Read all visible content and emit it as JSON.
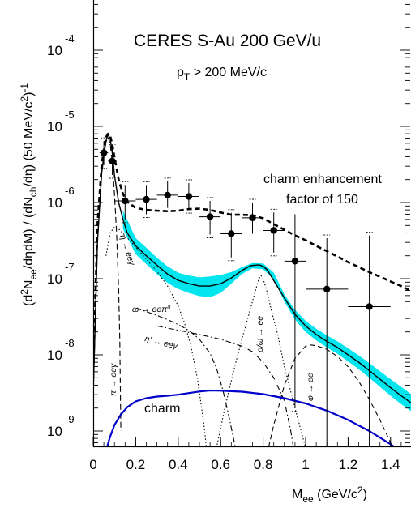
{
  "chart_data": {
    "type": "line",
    "title": "CERES S-Au 200 GeV/u",
    "subtitle": {
      "main": "p",
      "sub": "T",
      "rest": " > 200 MeV/c"
    },
    "ylabel": "(d²N_ee/dηdM) / (dN_ch/dη) (50 MeV/c²)⁻¹",
    "xlabel": "M_ee (GeV/c²)",
    "xlim": [
      0,
      1.5
    ],
    "ylim_log10": [
      -9.45,
      -3.55
    ],
    "x_ticks": [
      {
        "v": 0,
        "label": "0"
      },
      {
        "v": 0.2,
        "label": "0.2"
      },
      {
        "v": 0.4,
        "label": "0.4"
      },
      {
        "v": 0.6,
        "label": "0.6"
      },
      {
        "v": 0.8,
        "label": "0.8"
      },
      {
        "v": 1.0,
        "label": "1"
      },
      {
        "v": 1.2,
        "label": "1.2"
      },
      {
        "v": 1.4,
        "label": "1.4"
      }
    ],
    "y_ticks": [
      {
        "exp": -4,
        "base": "10",
        "label": "-4"
      },
      {
        "exp": -5,
        "base": "10",
        "label": "-5"
      },
      {
        "exp": -6,
        "base": "10",
        "label": "-6"
      },
      {
        "exp": -7,
        "base": "10",
        "label": "-7"
      },
      {
        "exp": -8,
        "base": "10",
        "label": "-8"
      },
      {
        "exp": -9,
        "base": "10",
        "label": "-9"
      }
    ],
    "annotation": [
      "charm enhancement",
      "factor of 150"
    ],
    "data_points": {
      "x": [
        0.05,
        0.09,
        0.15,
        0.25,
        0.35,
        0.45,
        0.55,
        0.65,
        0.75,
        0.85,
        0.95,
        1.1,
        1.3
      ],
      "y": [
        4.5e-06,
        3.5e-06,
        1.05e-06,
        1.1e-06,
        1.25e-06,
        1.2e-06,
        6.5e-07,
        3.9e-07,
        6.3e-07,
        4.3e-07,
        1.7e-07,
        7.3e-08,
        4.3e-08
      ],
      "y_err_stat_lo": [
        3.1e-06,
        2.3e-06,
        6e-07,
        7e-07,
        8.5e-07,
        8e-07,
        3.8e-07,
        1.9e-07,
        3.9e-07,
        2.2e-07,
        2e-09,
        5e-10,
        5e-10
      ],
      "y_err_stat_hi": [
        6.4e-06,
        5.2e-06,
        1.7e-06,
        1.7e-06,
        1.9e-06,
        1.8e-06,
        1.05e-06,
        7.3e-07,
        1e-06,
        7.4e-07,
        7e-07,
        3.4e-07,
        3.7e-07
      ],
      "x_err": [
        0.02,
        0.02,
        0.05,
        0.05,
        0.05,
        0.05,
        0.05,
        0.05,
        0.05,
        0.05,
        0.05,
        0.1,
        0.1
      ]
    },
    "series": [
      {
        "name": "total (cocktail sum)",
        "style": "solid",
        "color": "#000000",
        "x": [
          0.0,
          0.02,
          0.04,
          0.06,
          0.07,
          0.08,
          0.09,
          0.1,
          0.12,
          0.14,
          0.16,
          0.2,
          0.25,
          0.3,
          0.35,
          0.4,
          0.45,
          0.5,
          0.55,
          0.6,
          0.65,
          0.7,
          0.74,
          0.78,
          0.8,
          0.82,
          0.86,
          0.9,
          0.95,
          1.0,
          1.05,
          1.1,
          1.15,
          1.2,
          1.25,
          1.3,
          1.35,
          1.4,
          1.45,
          1.5
        ],
        "y": [
          3e-09,
          3e-07,
          2.5e-06,
          6.5e-06,
          7.8e-06,
          6.8e-06,
          4.4e-06,
          2.3e-06,
          1e-06,
          6e-07,
          4e-07,
          2.7e-07,
          2e-07,
          1.5e-07,
          1.15e-07,
          9.5e-08,
          8.6e-08,
          8e-08,
          8e-08,
          8.6e-08,
          1.02e-07,
          1.28e-07,
          1.48e-07,
          1.52e-07,
          1.45e-07,
          1.3e-07,
          8.5e-08,
          5.6e-08,
          3.4e-08,
          2.4e-08,
          1.85e-08,
          1.5e-08,
          1.25e-08,
          1e-08,
          8e-09,
          6.2e-09,
          4.8e-09,
          3.7e-09,
          2.9e-09,
          2.3e-09
        ]
      },
      {
        "name": "total + charm enhancement 150",
        "style": "thick-dashed",
        "color": "#000000",
        "x": [
          0.0,
          0.02,
          0.04,
          0.06,
          0.07,
          0.08,
          0.09,
          0.1,
          0.12,
          0.14,
          0.16,
          0.2,
          0.25,
          0.3,
          0.35,
          0.4,
          0.45,
          0.5,
          0.55,
          0.6,
          0.65,
          0.7,
          0.75,
          0.8,
          0.85,
          0.9,
          0.95,
          1.0,
          1.05,
          1.1,
          1.15,
          1.2,
          1.25,
          1.3,
          1.35,
          1.4,
          1.45,
          1.5
        ],
        "y": [
          6e-09,
          5e-07,
          3.2e-06,
          7.2e-06,
          8e-06,
          7.5e-06,
          5.7e-06,
          3.9e-06,
          2e-06,
          1.3e-06,
          1.02e-06,
          8.5e-07,
          8e-07,
          7.8e-07,
          7.7e-07,
          7.8e-07,
          8.2e-07,
          8.3e-07,
          8e-07,
          7.4e-07,
          6.9e-07,
          6.9e-07,
          6.8e-07,
          6.2e-07,
          5.2e-07,
          4.4e-07,
          3.7e-07,
          3.2e-07,
          2.7e-07,
          2.3e-07,
          1.95e-07,
          1.65e-07,
          1.42e-07,
          1.22e-07,
          1.06e-07,
          9.2e-08,
          8e-08,
          6.8e-08
        ]
      },
      {
        "name": "charm",
        "style": "solid",
        "color": "#0000cc",
        "label": "charm",
        "x": [
          0.0,
          0.02,
          0.04,
          0.06,
          0.08,
          0.1,
          0.13,
          0.16,
          0.2,
          0.25,
          0.3,
          0.35,
          0.4,
          0.45,
          0.5,
          0.55,
          0.6,
          0.7,
          0.8,
          0.9,
          1.0,
          1.1,
          1.2,
          1.3,
          1.4,
          1.5
        ],
        "y": [
          1e-10,
          1.5e-10,
          3e-10,
          5.5e-10,
          8.5e-10,
          1.2e-09,
          1.65e-09,
          2.05e-09,
          2.45e-09,
          2.7e-09,
          2.83e-09,
          2.9e-09,
          3e-09,
          3.15e-09,
          3.3e-09,
          3.4e-09,
          3.38e-09,
          3.28e-09,
          3.05e-09,
          2.7e-09,
          2.3e-09,
          1.85e-09,
          1.4e-09,
          1e-09,
          6.7e-10,
          4.2e-10
        ]
      },
      {
        "name": "pi0 Dalitz",
        "style": "dashed-long",
        "color": "#000000",
        "label": "π → eeγ",
        "x": [
          0.0,
          0.02,
          0.04,
          0.06,
          0.07,
          0.08,
          0.09,
          0.1,
          0.11,
          0.12,
          0.125,
          0.13
        ],
        "y": [
          3e-09,
          3e-07,
          2.4e-06,
          6.2e-06,
          7.2e-06,
          5.8e-06,
          3.3e-06,
          1.3e-06,
          4e-07,
          7e-08,
          1.5e-08,
          1e-09
        ]
      },
      {
        "name": "eta Dalitz",
        "style": "dotted",
        "color": "#000000",
        "label": "η → eeγ",
        "x": [
          0.06,
          0.08,
          0.1,
          0.12,
          0.15,
          0.2,
          0.25,
          0.3,
          0.35,
          0.4,
          0.43,
          0.46,
          0.49,
          0.52,
          0.54
        ],
        "y": [
          2e-07,
          4e-07,
          4.8e-07,
          4.5e-07,
          3.7e-07,
          2.6e-07,
          1.8e-07,
          1.25e-07,
          8e-08,
          4.4e-08,
          2.6e-08,
          1.3e-08,
          5e-09,
          1.3e-09,
          4e-10
        ]
      },
      {
        "name": "omega Dalitz",
        "style": "dash-dot",
        "color": "#000000",
        "label": "ω → eeπ⁰",
        "x": [
          0.2,
          0.25,
          0.3,
          0.35,
          0.4,
          0.45,
          0.5,
          0.55,
          0.58,
          0.61,
          0.64,
          0.67,
          0.7
        ],
        "y": [
          4.1e-08,
          3.7e-08,
          3.3e-08,
          2.9e-08,
          2.5e-08,
          2.1e-08,
          1.6e-08,
          1.05e-08,
          6.7e-09,
          3.5e-09,
          1.5e-09,
          6e-10,
          2e-10
        ]
      },
      {
        "name": "eta prime Dalitz",
        "style": "dash-dot",
        "color": "#000000",
        "label": "η' → eeγ",
        "x": [
          0.3,
          0.4,
          0.5,
          0.6,
          0.7,
          0.75,
          0.8,
          0.85,
          0.9,
          0.93,
          0.96
        ],
        "y": [
          2.4e-08,
          2.1e-08,
          1.85e-08,
          1.6e-08,
          1.3e-08,
          1.1e-08,
          8e-09,
          5e-09,
          2.5e-09,
          1e-09,
          3e-10
        ]
      },
      {
        "name": "rho/omega -> ee",
        "style": "dotted",
        "color": "#000000",
        "label": "ρ/ω → ee",
        "x": [
          0.58,
          0.62,
          0.66,
          0.7,
          0.74,
          0.77,
          0.78,
          0.79,
          0.8,
          0.82,
          0.84,
          0.87,
          0.9,
          0.95,
          1.0,
          1.05
        ],
        "y": [
          6e-10,
          2e-09,
          6e-09,
          1.6e-08,
          4e-08,
          8e-08,
          1e-07,
          1.1e-07,
          1e-07,
          6.5e-08,
          3.7e-08,
          1.8e-08,
          7e-09,
          2e-09,
          6e-10,
          2e-10
        ]
      },
      {
        "name": "phi -> ee",
        "style": "dashed",
        "color": "#000000",
        "label": "φ → ee",
        "x": [
          0.8,
          0.85,
          0.9,
          0.95,
          1.0,
          1.02,
          1.05,
          1.1,
          1.15,
          1.2,
          1.25,
          1.3,
          1.35,
          1.4,
          1.45,
          1.48
        ],
        "y": [
          3e-10,
          1.2e-09,
          4e-09,
          9e-09,
          1.3e-08,
          1.35e-08,
          1.32e-08,
          1.18e-08,
          9.5e-09,
          7e-09,
          4.5e-09,
          2.6e-09,
          1.4e-09,
          7e-10,
          3.5e-10,
          2e-10
        ]
      }
    ],
    "band": {
      "name": "systematic uncertainty of cocktail",
      "color": "#00e5ee",
      "x": [
        0.14,
        0.2,
        0.25,
        0.3,
        0.35,
        0.4,
        0.45,
        0.5,
        0.55,
        0.6,
        0.65,
        0.7,
        0.75,
        0.8,
        0.85,
        0.9,
        0.95,
        1.0,
        1.05,
        1.1,
        1.15,
        1.2,
        1.25,
        1.3,
        1.35,
        1.4,
        1.45,
        1.5
      ],
      "y_lo": [
        4.5e-07,
        2.1e-07,
        1.55e-07,
        1.15e-07,
        8.8e-08,
        7.3e-08,
        6.5e-08,
        5.9e-08,
        5.7e-08,
        6.5e-08,
        8.6e-08,
        1.15e-07,
        1.37e-07,
        1.33e-07,
        9.8e-08,
        5e-08,
        2.9e-08,
        2e-08,
        1.55e-08,
        1.25e-08,
        1.03e-08,
        8.2e-09,
        6.5e-09,
        5e-09,
        3.8e-09,
        2.9e-09,
        2.25e-09,
        1.8e-09
      ],
      "y_hi": [
        7.8e-07,
        3.4e-07,
        2.55e-07,
        1.88e-07,
        1.45e-07,
        1.2e-07,
        1.1e-07,
        1.04e-07,
        1.07e-07,
        1.12e-07,
        1.22e-07,
        1.42e-07,
        1.6e-07,
        1.58e-07,
        1.2e-07,
        6.2e-08,
        3.9e-08,
        2.8e-08,
        2.2e-08,
        1.8e-08,
        1.5e-08,
        1.22e-08,
        9.8e-09,
        7.8e-09,
        6.1e-09,
        4.8e-09,
        3.8e-09,
        3e-09
      ]
    }
  }
}
